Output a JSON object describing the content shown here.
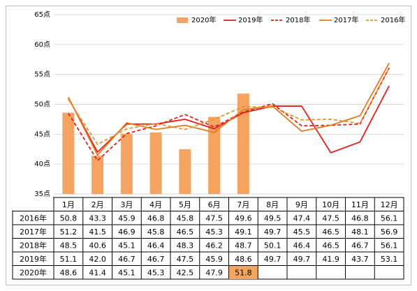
{
  "chart_data": {
    "type": "bar+line",
    "title": "",
    "xlabel": "",
    "ylabel": "",
    "ylim": [
      35,
      65
    ],
    "y_ticks": [
      "35点",
      "40点",
      "45点",
      "50点",
      "55点",
      "60点",
      "65点"
    ],
    "y_tick_values": [
      35,
      40,
      45,
      50,
      55,
      60,
      65
    ],
    "categories": [
      "1月",
      "2月",
      "3月",
      "4月",
      "5月",
      "6月",
      "7月",
      "8月",
      "9月",
      "10月",
      "11月",
      "12月"
    ],
    "legend_position": "top-right",
    "series": [
      {
        "name": "2020年",
        "kind": "bar",
        "color": "#F4A460",
        "values": [
          48.6,
          41.4,
          45.1,
          45.3,
          42.5,
          47.9,
          51.8,
          null,
          null,
          null,
          null,
          null
        ]
      },
      {
        "name": "2019年",
        "kind": "line",
        "style": "solid",
        "color": "#E0201B",
        "values": [
          51.1,
          42.0,
          46.7,
          46.7,
          47.5,
          45.9,
          48.6,
          49.7,
          49.7,
          41.9,
          43.7,
          53.1
        ]
      },
      {
        "name": "2018年",
        "kind": "line",
        "style": "dashed",
        "color": "#E0201B",
        "values": [
          48.5,
          40.6,
          45.1,
          46.4,
          48.3,
          46.2,
          48.7,
          50.1,
          46.4,
          46.5,
          46.7,
          56.1
        ]
      },
      {
        "name": "2017年",
        "kind": "line",
        "style": "solid",
        "color": "#E27B1E",
        "values": [
          51.2,
          41.5,
          46.9,
          45.8,
          46.5,
          45.3,
          49.1,
          49.7,
          45.5,
          46.5,
          48.1,
          56.9
        ]
      },
      {
        "name": "2016年",
        "kind": "line",
        "style": "dashed",
        "color": "#E8912E",
        "values": [
          50.8,
          43.3,
          45.9,
          46.8,
          45.8,
          47.5,
          49.6,
          49.5,
          47.4,
          47.5,
          46.8,
          56.1
        ]
      }
    ],
    "table": {
      "row_order": [
        "2016年",
        "2017年",
        "2018年",
        "2019年",
        "2020年"
      ],
      "rows": {
        "2016年": [
          "50.8",
          "43.3",
          "45.9",
          "46.8",
          "45.8",
          "47.5",
          "49.6",
          "49.5",
          "47.4",
          "47.5",
          "46.8",
          "56.1"
        ],
        "2017年": [
          "51.2",
          "41.5",
          "46.9",
          "45.8",
          "46.5",
          "45.3",
          "49.1",
          "49.7",
          "45.5",
          "46.5",
          "48.1",
          "56.9"
        ],
        "2018年": [
          "48.5",
          "40.6",
          "45.1",
          "46.4",
          "48.3",
          "46.2",
          "48.7",
          "50.1",
          "46.4",
          "46.5",
          "46.7",
          "56.1"
        ],
        "2019年": [
          "51.1",
          "42.0",
          "46.7",
          "46.7",
          "47.5",
          "45.9",
          "48.6",
          "49.7",
          "49.7",
          "41.9",
          "43.7",
          "53.1"
        ],
        "2020年": [
          "48.6",
          "41.4",
          "45.1",
          "45.3",
          "42.5",
          "47.9",
          "51.8",
          "",
          "",
          "",
          "",
          ""
        ]
      },
      "highlight": {
        "row": "2020年",
        "col": 6,
        "color": "#F4A460"
      }
    }
  }
}
